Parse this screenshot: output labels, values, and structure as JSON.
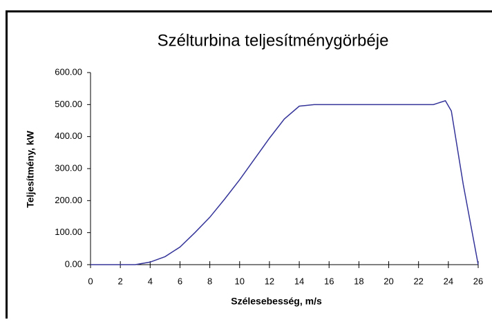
{
  "chart_data": {
    "type": "line",
    "title": "Szélturbina teljesítménygörbéje",
    "x_label": "Szélesebesség, m/s",
    "y_label": "Teljesítmény, kW",
    "x": [
      0,
      1,
      2,
      3,
      4,
      5,
      6,
      7,
      8,
      9,
      10,
      11,
      12,
      13,
      14,
      15,
      16,
      17,
      18,
      19,
      20,
      21,
      22,
      23,
      23.8,
      24.2,
      25,
      26
    ],
    "series": [
      {
        "color": "#333399",
        "values": [
          0,
          0,
          0,
          0,
          8,
          25,
          55,
          100,
          148,
          205,
          265,
          330,
          395,
          455,
          495,
          500,
          500,
          500,
          500,
          500,
          500,
          500,
          500,
          500,
          512,
          480,
          250,
          0
        ]
      }
    ],
    "xlim": [
      0,
      26
    ],
    "xticks": [
      0,
      2,
      4,
      6,
      8,
      10,
      12,
      14,
      16,
      18,
      20,
      22,
      24,
      26
    ],
    "ylim": [
      0,
      600
    ],
    "yticks": [
      {
        "value": 0,
        "label": "0.00"
      },
      {
        "value": 100,
        "label": "100.00"
      },
      {
        "value": 200,
        "label": "200.00"
      },
      {
        "value": 300,
        "label": "300.00"
      },
      {
        "value": 400,
        "label": "400.00"
      },
      {
        "value": 500,
        "label": "500.00"
      },
      {
        "value": 600,
        "label": "600.00"
      }
    ]
  }
}
